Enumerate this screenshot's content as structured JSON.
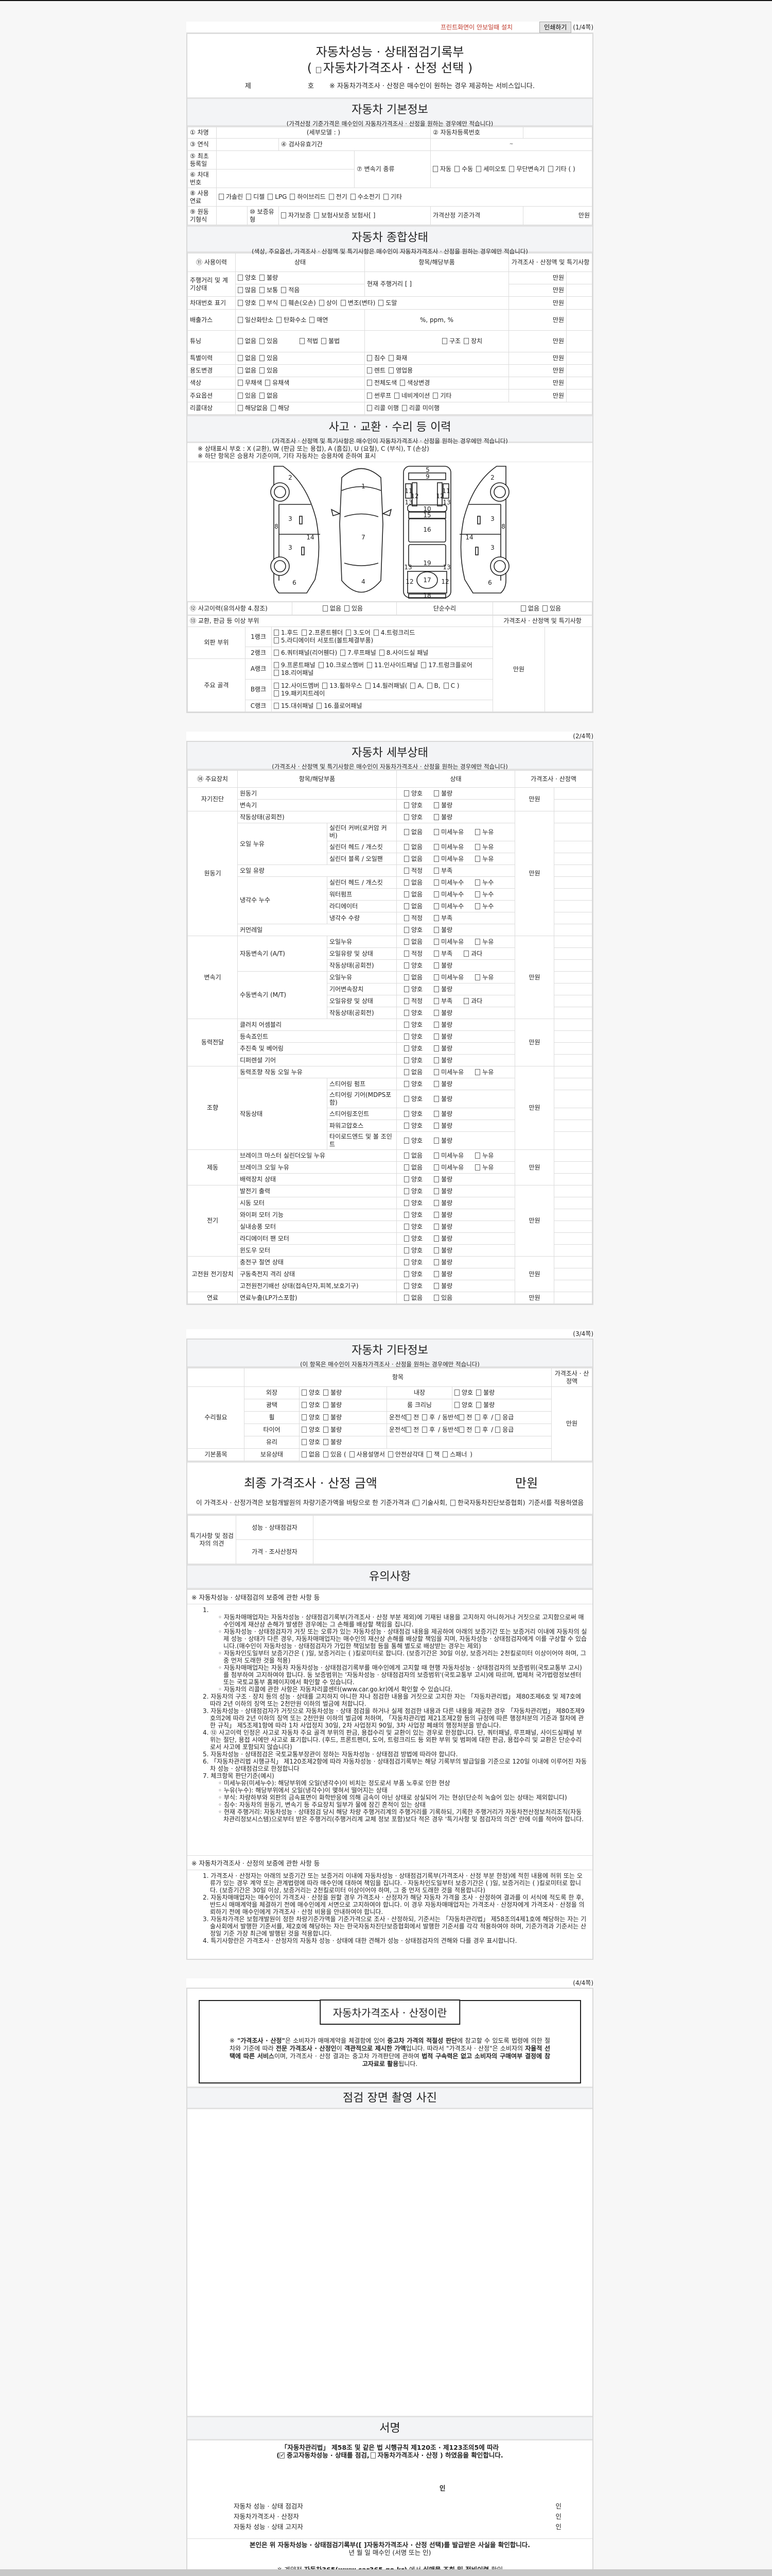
{
  "toolbar": {
    "notice": "프린트화면이 안보일때 설치",
    "print_button": "인쇄하기",
    "page": "(1/4쪽)"
  },
  "title": {
    "line1": "자동차성능 · 상태점검기록부",
    "line2_open": "(",
    "line2_text": "자동차가격조사 · 산정 선택",
    "line2_close": ")",
    "no_prefix": "제",
    "no_suffix": "호",
    "notice": "※ 자동차가격조사 · 산정은 매수인이 원하는 경우 제공하는 서비스입니다."
  },
  "basic": {
    "title": "자동차 기본정보",
    "subtitle": "(가격산정 기준가격은 매수인이 자동차가격조사 · 산정을 원하는 경우에만 적습니다)",
    "car_name": "① 차명",
    "detail_model": "(세부모델 :                    )",
    "reg_no": "② 자동차등록번호",
    "year": "③ 연식",
    "inspection_period": "④ 검사유효기간",
    "period_sep": "~",
    "first_reg": "⑤ 최초등록일",
    "vin": "⑥ 차대번호",
    "transmission": "⑦ 변속기 종류",
    "transmission_opts": [
      "자동",
      "수동",
      "세미오토",
      "무단변속기",
      "기타 (          )"
    ],
    "fuel": "⑧ 사용연료",
    "fuel_opts": [
      "가솔린",
      "디젤",
      "LPG",
      "하이브리드",
      "전기",
      "수소전기",
      "기타"
    ],
    "engine_type": "⑨ 원동기형식",
    "warranty": "⑩ 보증유형",
    "warranty_opts": [
      "자가보증",
      "보험사보증 보험사[            ]"
    ],
    "base_price": "가격산정 기준가격",
    "unit": "만원"
  },
  "summary": {
    "title": "자동차 종합상태",
    "subtitle": "(색상, 주요옵션, 가격조사 · 산정액 및 특기사항은 매수인이 자동차가격조사 · 산정을 원하는 경우에만 적습니다)",
    "headers": [
      "⑪ 사용이력",
      "상태",
      "항목/해당부품",
      "가격조사 · 산정액 및 특기사항"
    ],
    "unit": "만원",
    "mileage": {
      "label": "주행거리 및 계기상태",
      "opts1": [
        "양호",
        "불량"
      ],
      "opts2": [
        "많음",
        "보통",
        "적음"
      ],
      "item": "현재 주행거리 [                    ]"
    },
    "vin_mark": {
      "label": "차대번호 표기",
      "opts": [
        "양호",
        "부식",
        "훼손(오손)",
        "상이",
        "변조(변타)",
        "도말"
      ]
    },
    "emission": {
      "label": "배출가스",
      "opts": [
        "일산화탄소",
        "탄화수소",
        "매연"
      ],
      "item": "%,      ppm,      %"
    },
    "tuning": {
      "label": "튜닝",
      "opts": [
        "없음",
        "있음"
      ],
      "opts2": [
        "적법",
        "불법"
      ],
      "item_opts": [
        "구조",
        "장치"
      ]
    },
    "special": {
      "label": "특별이력",
      "opts": [
        "없음",
        "있음"
      ],
      "item_opts": [
        "침수",
        "화재"
      ]
    },
    "usage": {
      "label": "용도변경",
      "opts": [
        "없음",
        "있음"
      ],
      "item_opts": [
        "렌트",
        "영업용"
      ]
    },
    "color": {
      "label": "색상",
      "opts": [
        "무채색",
        "유채색"
      ],
      "item_opts": [
        "전체도색",
        "색상변경"
      ]
    },
    "options": {
      "label": "주요옵션",
      "opts": [
        "있음",
        "없음"
      ],
      "item_opts": [
        "썬루프",
        "네비게이션",
        "기타"
      ]
    },
    "recall": {
      "label": "리콜대상",
      "opts": [
        "해당없음",
        "해당"
      ],
      "item_opts": [
        "리콜 이행",
        "리콜 미이행"
      ]
    }
  },
  "accident": {
    "title": "사고 · 교환 · 수리 등 이력",
    "subtitle": "(가격조사 · 산정액 및 특기사항은 매수인이 자동차가격조사 · 산정을 원하는 경우에만 적습니다)",
    "note1": "※ 상태표시 부호 : X (교환), W (판금 또는 용접), A (흠집), U (요철), C (부식), T (손상)",
    "note2": "※ 하단 항목은 승용차 기준이며, 기타 자동차는 승용차에 준하여 표시",
    "part_numbers": [
      "2",
      "3",
      "3",
      "8",
      "14",
      "6",
      "1",
      "7",
      "4",
      "5",
      "9",
      "11",
      "11",
      "12",
      "12",
      "13",
      "13",
      "10",
      "15",
      "16",
      "19",
      "13",
      "13",
      "17",
      "12",
      "12",
      "18",
      "2",
      "3",
      "3",
      "8",
      "14",
      "6"
    ],
    "history_label": "⑫ 사고이력(유의사항 4.참조)",
    "history_opts": [
      "없음",
      "있음"
    ],
    "simple_repair": "단순수리",
    "simple_opts": [
      "없음",
      "있음"
    ],
    "parts_label": "⑬ 교환, 판금 등 이상 부위",
    "price_label": "가격조사 · 산정액 및 특기사항",
    "unit": "만원",
    "outer": "외판 부위",
    "frame": "주요 골격",
    "ranks": [
      {
        "rank": "1랭크",
        "opts": [
          "1.후드",
          "2.프론트휀더",
          "3.도어",
          "4.트렁크리드",
          "5.라디에이터 서포트(볼트체결부품)"
        ]
      },
      {
        "rank": "2랭크",
        "opts": [
          "6.쿼터패널(리어휀다)",
          "7.루프패널",
          "8.사이드실 패널"
        ]
      },
      {
        "rank": "A랭크",
        "opts": [
          "9.프론트패널",
          "10.크로스멤버",
          "11.인사이드패널",
          "17.트렁크플로어",
          "18.리어패널"
        ]
      },
      {
        "rank": "B랭크",
        "opts": [
          "12.사이드멤버",
          "13.휠하우스",
          "14.필러패널(",
          "A,",
          "B,",
          "C )",
          "19.패키지트레이"
        ]
      },
      {
        "rank": "C랭크",
        "opts": [
          "15.대쉬패널",
          "16.플로어패널"
        ]
      }
    ]
  },
  "page2": {
    "page": "(2/4쪽)",
    "title": "자동차 세부상태",
    "subtitle": "(가격조사 · 산정액 및 특기사항은 매수인이 자동차가격조사 · 산정을 원하는 경우에만 적습니다)",
    "headers": [
      "⑭ 주요장치",
      "항목/해당부품",
      "상태",
      "가격조사 · 산정액"
    ],
    "unit": "만원",
    "groups": [
      {
        "cat": "자기진단",
        "items": [
          {
            "name": "원동기",
            "opts": [
              "양호",
              "불량"
            ]
          },
          {
            "name": "변속기",
            "opts": [
              "양호",
              "불량"
            ]
          }
        ]
      },
      {
        "cat": "원동기",
        "items": [
          {
            "name": "작동상태(공회전)",
            "opts": [
              "양호",
              "불량"
            ]
          },
          {
            "name": "오일 누유",
            "subs": [
              {
                "name": "실린더 커버(로커암 커버)",
                "opts": [
                  "없음",
                  "미세누유",
                  "누유"
                ]
              },
              {
                "name": "실린더 헤드 / 개스킷",
                "opts": [
                  "없음",
                  "미세누유",
                  "누유"
                ]
              },
              {
                "name": "실린더 블록 / 오일팬",
                "opts": [
                  "없음",
                  "미세누유",
                  "누유"
                ]
              }
            ]
          },
          {
            "name": "오일 유량",
            "opts": [
              "적정",
              "부족"
            ]
          },
          {
            "name": "냉각수 누수",
            "subs": [
              {
                "name": "실린더 헤드 / 개스킷",
                "opts": [
                  "없음",
                  "미세누수",
                  "누수"
                ]
              },
              {
                "name": "워터펌프",
                "opts": [
                  "없음",
                  "미세누수",
                  "누수"
                ]
              },
              {
                "name": "라디에이터",
                "opts": [
                  "없음",
                  "미세누수",
                  "누수"
                ]
              },
              {
                "name": "냉각수 수량",
                "opts": [
                  "적정",
                  "부족"
                ]
              }
            ]
          },
          {
            "name": "커먼레일",
            "opts": [
              "양호",
              "불량"
            ]
          }
        ]
      },
      {
        "cat": "변속기",
        "items": [
          {
            "name": "자동변속기 (A/T)",
            "subs": [
              {
                "name": "오일누유",
                "opts": [
                  "없음",
                  "미세누유",
                  "누유"
                ]
              },
              {
                "name": "오일유량 및 상태",
                "opts": [
                  "적정",
                  "부족",
                  "과다"
                ]
              },
              {
                "name": "작동상태(공회전)",
                "opts": [
                  "양호",
                  "불량"
                ]
              }
            ]
          },
          {
            "name": "수동변속기 (M/T)",
            "subs": [
              {
                "name": "오일누유",
                "opts": [
                  "없음",
                  "미세누유",
                  "누유"
                ]
              },
              {
                "name": "기어변속장치",
                "opts": [
                  "양호",
                  "불량"
                ]
              },
              {
                "name": "오일유량 및 상태",
                "opts": [
                  "적정",
                  "부족",
                  "과다"
                ]
              },
              {
                "name": "작동상태(공회전)",
                "opts": [
                  "양호",
                  "불량"
                ]
              }
            ]
          }
        ]
      },
      {
        "cat": "동력전달",
        "items": [
          {
            "name": "클러치 어셈블리",
            "opts": [
              "양호",
              "불량"
            ]
          },
          {
            "name": "등속죠인트",
            "opts": [
              "양호",
              "불량"
            ]
          },
          {
            "name": "추진축 및 베어링",
            "opts": [
              "양호",
              "불량"
            ]
          },
          {
            "name": "디퍼렌셜 기어",
            "opts": [
              "양호",
              "불량"
            ]
          }
        ]
      },
      {
        "cat": "조향",
        "items": [
          {
            "name": "동력조향 작동 오일 누유",
            "opts": [
              "없음",
              "미세누유",
              "누유"
            ]
          },
          {
            "name": "작동상태",
            "subs": [
              {
                "name": "스티어링 펌프",
                "opts": [
                  "양호",
                  "불량"
                ]
              },
              {
                "name": "스티어링 기어(MDPS포함)",
                "opts": [
                  "양호",
                  "불량"
                ]
              },
              {
                "name": "스티어링조인트",
                "opts": [
                  "양호",
                  "불량"
                ]
              },
              {
                "name": "파워고압호스",
                "opts": [
                  "양호",
                  "불량"
                ]
              },
              {
                "name": "타이로드엔드 및 볼 조인트",
                "opts": [
                  "양호",
                  "불량"
                ]
              }
            ]
          }
        ]
      },
      {
        "cat": "제동",
        "items": [
          {
            "name": "브레이크 마스터 실린더오일 누유",
            "opts": [
              "없음",
              "미세누유",
              "누유"
            ]
          },
          {
            "name": "브레이크 오일 누유",
            "opts": [
              "없음",
              "미세누유",
              "누유"
            ]
          },
          {
            "name": "배력장치 상태",
            "opts": [
              "양호",
              "불량"
            ]
          }
        ]
      },
      {
        "cat": "전기",
        "items": [
          {
            "name": "발전기 출력",
            "opts": [
              "양호",
              "불량"
            ]
          },
          {
            "name": "시동 모터",
            "opts": [
              "양호",
              "불량"
            ]
          },
          {
            "name": "와이퍼 모터 기능",
            "opts": [
              "양호",
              "불량"
            ]
          },
          {
            "name": "실내송풍 모터",
            "opts": [
              "양호",
              "불량"
            ]
          },
          {
            "name": "라디에이터 팬 모터",
            "opts": [
              "양호",
              "불량"
            ]
          },
          {
            "name": "윈도우 모터",
            "opts": [
              "양호",
              "불량"
            ]
          }
        ]
      },
      {
        "cat": "고전원 전기장치",
        "items": [
          {
            "name": "충전구 절연 상태",
            "opts": [
              "양호",
              "불량"
            ]
          },
          {
            "name": "구동축전지 격리 상태",
            "opts": [
              "양호",
              "불량"
            ]
          },
          {
            "name": "고전원전기배선 상태(접속단자,피복,보호기구)",
            "opts": [
              "양호",
              "불량"
            ]
          }
        ]
      },
      {
        "cat": "연료",
        "items": [
          {
            "name": "연료누출(LP가스포함)",
            "opts": [
              "없음",
              "있음"
            ]
          }
        ]
      }
    ]
  },
  "page3": {
    "page": "(3/4쪽)",
    "title": "자동차 기타정보",
    "subtitle": "(이 항목은 매수인이 자동차가격조사 · 산정을 원하는 경우에만 적습니다)",
    "item_header": "항목",
    "price_header": "가격조사 · 산정액",
    "unit": "만원",
    "repair": "수리필요",
    "basic_items": "기본품목",
    "ok_bad": [
      "양호",
      "불량"
    ],
    "exterior": "외장",
    "interior": "내장",
    "polish": "광택",
    "cleaning": "룸 크리닝",
    "wheel": "휠",
    "tire": "타이어",
    "glass": "유리",
    "seat_driver": "운전석",
    "seat_passenger": "동반석",
    "front": "전",
    "rear": "후",
    "emergency": "응급",
    "sep": "/",
    "holding": "보유상태",
    "holding_opts": [
      "없음",
      "있음 ("
    ],
    "holding_items": [
      "사용설명서",
      "안전삼각대",
      "잭",
      "스패너"
    ],
    "holding_close": ")",
    "final_title": "최종 가격조사 · 산정 금액",
    "final_unit": "만원",
    "basis_pre": "이 가격조사 · 산정가격은 보험개발원의 차량기준가액을 바탕으로 한 기준가격과 (",
    "basis_opts": [
      "기술사회,",
      "한국자동차진단보증협회)"
    ],
    "basis_post": "기준서를 적용하였음",
    "opinion_label": "특기사항 및 점검자의 의견",
    "inspector": "성능 · 상태점검자",
    "appraiser": "가격 · 조사산정자",
    "caution_title": "유의사항",
    "sec1": "※ 자동차성능 · 상태점검의 보증에 관한 사항 등",
    "sec1_items": [
      {
        "n": "1.",
        "t": "",
        "subs": [
          "자동차매매업자는 자동차성능 · 상태점검기록부(가격조사 · 산정 부분 제외)에 기재된 내용을 고지하지 아니하거나 거짓으로 고지함으로써 매수인에게 재산상 손해가 발생한 경우에는 그 손해를 배상할 책임을 집니다.",
          "자동차성능 · 상태점검자가 거짓 또는 오류가 있는 자동차성능 · 상태점검 내용을 제공하여 아래의 보증기간 또는 보증거리 이내에 자동차의 실제 성능 · 상태가 다른 경우, 자동차매매업자는 매수인의 재산상 손해를 배상할 책임을 지며, 자동차성능 · 상태점검자에게 이를 구상할 수 있습니다.(매수인이 자동차성능 · 상태점검자가 가입한 책임보험 등을 통해 별도로 배상받는 경우는 제외)",
          "자동차인도일부터 보증기간은 (      )일, 보증거리는 (      )킬로미터로 합니다. (보증기간은 30일 이상, 보증거리는 2천킬로미터 이상이어야 하며, 그 중 먼저 도래한 것을 적용)",
          "자동차매매업자는 자동차 자동차성능 · 상태점검기록부를 매수인에게 고지할 때 현행 자동차성능 · 상태점검자의 보증범위(국토교통부 고시)를 첨부하여 고지하여야 합니다. 동 보증범위는 '자동차성능 · 상태점검자의 보증범위'(국토교통부 고시)에 따르며, 법제처 국가법령정보센터 또는 국토교통부 홈페이지에서 확인할 수 있습니다.",
          "자동차의 리콜에 관한 사항은 자동차리콜센터(www.car.go.kr)에서 확인할 수 있습니다."
        ]
      },
      {
        "n": "2.",
        "t": "자동차의 구조 · 장치 등의 성능 · 상태를 고지하지 아니한 자나 점검한 내용을 거짓으로 고지한 자는 「자동차관리법」 제80조제6호 및 제7호에 따라 2년 이하의 징역 또는 2천만원 이하의 벌금에 처합니다.",
        "subs": []
      },
      {
        "n": "3.",
        "t": "자동차성능 · 상태점검자가 거짓으로 자동차성능 · 상태 점검을 하거나 실제 점검한 내용과 다른 내용을 제공한 경우 「자동차관리법」 제80조제9호의2에 따라 2년 이하의 징역 또는 2천만원 이하의 벌금에 처하며, 「자동차관리법 제21조제2항 등의 규정에 따른 행정처분의 기준과 절차에 관한 규칙」 제5조제1항에 따라 1차 사업정지 30일, 2차 사업정지 90일, 3차 사업장 폐쇄의 행정처분을 받습니다.",
        "subs": []
      },
      {
        "n": "4.",
        "t": "⑫ 사고이력 인정은 사고로 자동차 주요 골격 부위의 판금, 용접수리 및 교환이 있는 경우로 한정합니다. 단, 쿼터패널, 루프패널, 사이드실패널 부위는 절단, 용접 시에만 사고로 표기합니다. (후드, 프론트펜더, 도어, 트렁크리드 등 외판 부위 및 범퍼에 대한 판금, 용접수리 및 교환은 단순수리로서 사고에 포함되지 않습니다)",
        "subs": []
      },
      {
        "n": "5.",
        "t": "자동차성능 · 상태점검은 국토교통부장관이 정하는 자동차성능 · 상태점검 방법에 따라야 합니다.",
        "subs": []
      },
      {
        "n": "6.",
        "t": "「자동차관리법 시행규칙」 제120조제2항에 따라 자동차성능 · 상태점검기록부는 해당 기록부의 발급일을 기준으로 120일 이내에 이루어진 자동차 성능 · 상태점검으로 한정합니다",
        "subs": []
      },
      {
        "n": "7.",
        "t": "체크항목 판단기준(예시)",
        "subs": [
          "미세누유(미세누수): 해당부위에 오일(냉각수)이 비치는 정도로서 부품 노후로 인한 현상",
          "누유(누수): 해당부위에서 오일(냉각수)이 맺혀서 떨어지는 상태",
          "부식: 차량하부와 외판의 금속표면이 화학반응에 의해 금속이 아닌 상태로 상실되어 가는 현상(단순히 녹슬어 있는 상태는 제외합니다)",
          "침수: 자동차의 원동기, 변속기 등 주요장치 일부가 물에 잠긴 흔적이 있는 상태",
          "현재 주행거리: 자동차성능 · 상태점검 당시 해당 차량 주행거리계의 주행거리를 기록하되, 기록한 주행거리가 자동차전산정보처리조직(자동차관리정보시스템)으로부터 받은 주행거리(주행거리계 교체 정보 포함)보다 적은 경우 '특기사항 및 점검자의 의견' 란에 이를 적어야 합니다."
        ]
      }
    ],
    "sec2": "※ 자동차가격조사 · 산정의 보증에 관한 사항 등",
    "sec2_items": [
      {
        "n": "1.",
        "t": "가격조사 · 산정자는 아래의 보증기간 또는 보증거리 이내에 자동차성능 · 상태점검기록부(가격조사 · 산정 부분 한정)에 적힌 내용에 허위 또는 오류가 있는 경우 계약 또는 관계법령에 따라 매수인에 대하여 책임을 집니다. · 자동차인도일부터 보증기간은 (      )일, 보증거리는 (      )킬로미터로 합니다. (보증기간은 30일 이상, 보증거리는 2천킬로미터 이상이어야 하며, 그 중 먼저 도래한 것을 적용합니다)"
      },
      {
        "n": "2.",
        "t": "자동차매매업자는 매수인이 가격조사 · 산정을 원할 경우 가격조사 · 산정자가 해당 자동차 가격을 조사 · 산정하여 결과를 이 서식에 적도록 한 후, 반드시 매매계약을 체결하기 전에 매수인에게 서면으로 고지하여야 합니다. 이 경우 자동차매매업자는 가격조사 · 산정자에게 가격조사 · 산정을 의뢰하기 전에 매수인에게 가격조사 · 산정 비용을 안내하여야 합니다."
      },
      {
        "n": "3.",
        "t": "자동차가격은 보험개발원이 정한 차량기준가액을 기준가격으로 조사 · 산정하되, 기준서는 「자동차관리법」 제58조의4제1호에 해당하는 자는 기술사회에서 발행한 기준서를, 제2호에 해당하는 자는 한국자동차진단보증협회에서 발행한 기준서를 각각 적용하여야 하며, 기준가격과 기준서는 산정일 기준 가장 최근에 발행된 것을 적용합니다."
      },
      {
        "n": "4.",
        "t": "특기사항란은 가격조사 · 산정자의 자동차 성능 · 상태에 대한 견해가 성능 · 상태점검자의 견해와 다를 경우 표시합니다."
      }
    ]
  },
  "page4": {
    "page": "(4/4쪽)",
    "frame_title": "자동차가격조사 · 산정이란",
    "frame_text": [
      {
        "t": "※ ",
        "b": false
      },
      {
        "t": "\"가격조사 · 산정\"",
        "b": true
      },
      {
        "t": "은 소비자가 매매계약을 체결함에 있어 ",
        "b": false
      },
      {
        "t": "중고차 가격의 적절성 판단",
        "b": true
      },
      {
        "t": "에 참고할 수 있도록 법령에 의한 절차와 기준에 따라 ",
        "b": false
      },
      {
        "t": "전문 가격조사 · 산정인",
        "b": true
      },
      {
        "t": "이 ",
        "b": false
      },
      {
        "t": "객관적으로 제시한 가액",
        "b": true
      },
      {
        "t": "입니다. 따라서 \"가격조사 · 산정\"은 소비자의 ",
        "b": false
      },
      {
        "t": "자율적 선택에 따른 서비스",
        "b": true
      },
      {
        "t": "이며, 가격조사 · 산정 결과는 중고차 가격판단에 관하여 ",
        "b": false
      },
      {
        "t": "법적 구속력은 없고 소비자의 구매여부 결정에 참고자료로 활용",
        "b": true
      },
      {
        "t": "됩니다.",
        "b": false
      }
    ],
    "photo_title": "점검 장면 촬영 사진",
    "sign_title": "서명",
    "law_line1": "「자동차관리법」 제58조 및 같은 법 시행규칙 제120조 · 제123조의5에 따라",
    "law_open": "(",
    "law_opt1": "중고자동차성능 · 상태를 점검,",
    "law_opt2": "자동차가격조사 · 산정 ) 하였음을 확인합니다.",
    "seal": "인",
    "signers": [
      {
        "role": "자동차 성능 · 상태 점검자",
        "seal": "인"
      },
      {
        "role": "자동차가격조사 · 산정자",
        "seal": "인"
      },
      {
        "role": "자동차 성능 · 상태 고지자",
        "seal": "인"
      }
    ],
    "confirm": "본인은 위 자동차성능 · 상태점검기록부([   ]자동차가격조사 · 산정 선택)를 발급받은 사실을 확인합니다.",
    "date_line": "년     월     일      매수인                    (서명 또는 인)",
    "footer_pre": "※ 계약전 ",
    "footer_b1": "자동차365(www.car365.go.kr)",
    "footer_mid": " 에서 ",
    "footer_b2": "실매물 조회 및 정비이력",
    "footer_post": " 확인"
  }
}
